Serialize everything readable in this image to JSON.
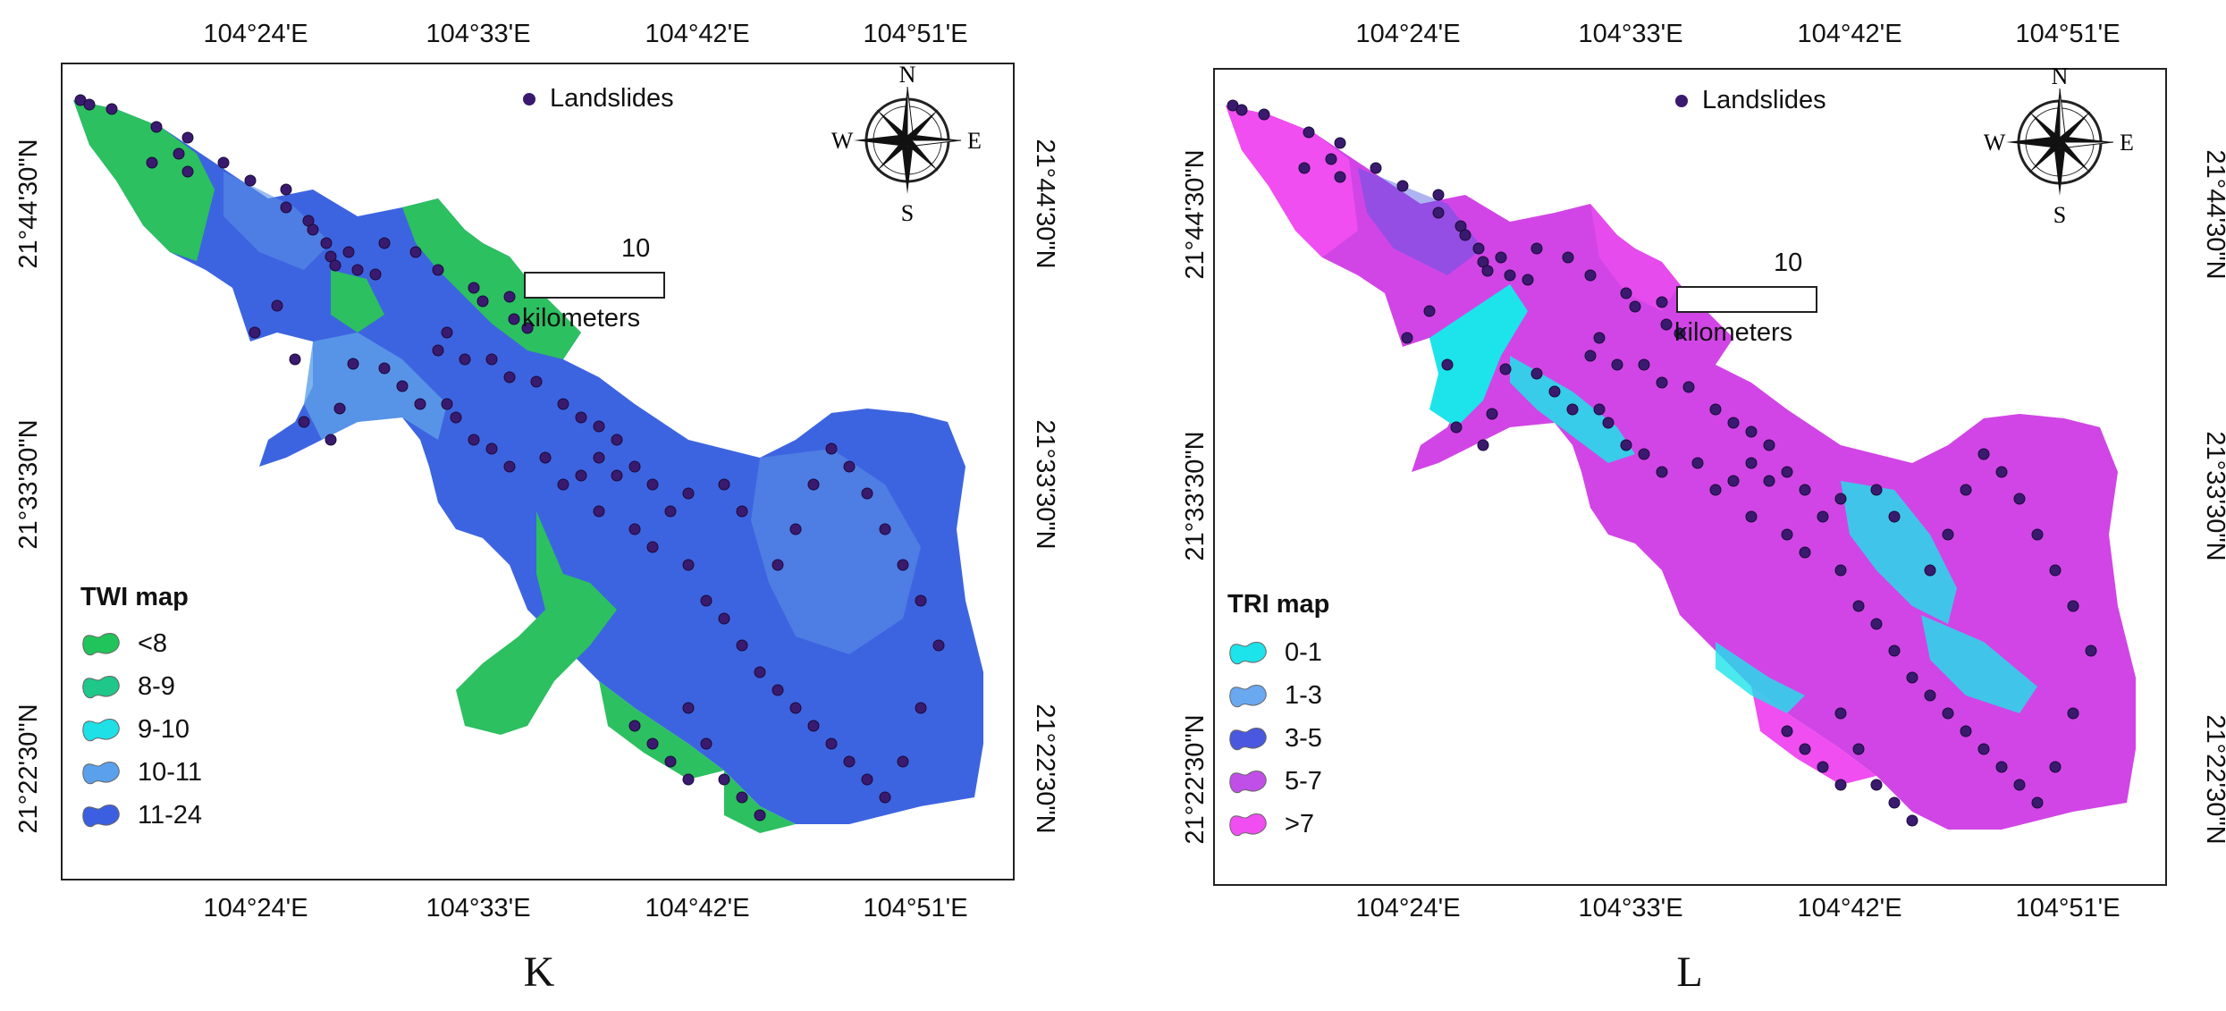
{
  "panels": [
    {
      "letter": "K",
      "legend_title": "TWI map",
      "classes": [
        {
          "label": "<8",
          "color": "#21c45a"
        },
        {
          "label": "8-9",
          "color": "#1fc78a"
        },
        {
          "label": "9-10",
          "color": "#1fe0e6"
        },
        {
          "label": "10-11",
          "color": "#5aa0ea"
        },
        {
          "label": "11-24",
          "color": "#3b5fe0"
        }
      ]
    },
    {
      "letter": "L",
      "legend_title": "TRI map",
      "classes": [
        {
          "label": "0-1",
          "color": "#1de3ea"
        },
        {
          "label": "1-3",
          "color": "#6aa8f0"
        },
        {
          "label": "3-5",
          "color": "#4a58e0"
        },
        {
          "label": "5-7",
          "color": "#c04fe8"
        },
        {
          "label": ">7",
          "color": "#f04ef0"
        }
      ]
    }
  ],
  "common": {
    "landslides_label": "Landslides",
    "landslide_color": "#3a1a6e",
    "scale_value": "10",
    "scale_unit": "kilometers",
    "compass": {
      "n": "N",
      "s": "S",
      "e": "E",
      "w": "W"
    },
    "lon_ticks": [
      "104°24'E",
      "104°33'E",
      "104°42'E",
      "104°51'E"
    ],
    "lat_ticks": [
      "21°44'30\"N",
      "21°33'30\"N",
      "21°22'30\"N"
    ]
  }
}
